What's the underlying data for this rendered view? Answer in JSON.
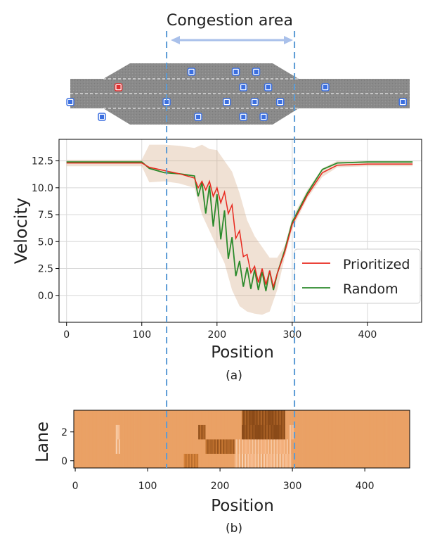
{
  "annotation": {
    "congestion_label": "Congestion area",
    "congestion_range": [
      133,
      303
    ]
  },
  "road": {
    "colors": {
      "road": "#888888",
      "vehicle": "#3b6fe0",
      "highlighted_vehicle": "#e03030"
    },
    "vehicles": [
      {
        "pos": 5,
        "lane": 1
      },
      {
        "pos": 47,
        "lane": 0
      },
      {
        "pos": 69,
        "lane": 2,
        "highlight": true
      },
      {
        "pos": 133,
        "lane": 1
      },
      {
        "pos": 166,
        "lane": 3
      },
      {
        "pos": 175,
        "lane": 0
      },
      {
        "pos": 213,
        "lane": 1
      },
      {
        "pos": 225,
        "lane": 3
      },
      {
        "pos": 235,
        "lane": 2
      },
      {
        "pos": 235,
        "lane": 0
      },
      {
        "pos": 250,
        "lane": 1
      },
      {
        "pos": 252,
        "lane": 3
      },
      {
        "pos": 262,
        "lane": 0
      },
      {
        "pos": 268,
        "lane": 2
      },
      {
        "pos": 284,
        "lane": 1
      },
      {
        "pos": 344,
        "lane": 2
      },
      {
        "pos": 447,
        "lane": 1
      }
    ]
  },
  "chart_data": [
    {
      "type": "line",
      "caption": "(a)",
      "xlabel": "Position",
      "ylabel": "Velocity",
      "xlim": [
        -10,
        472
      ],
      "ylim": [
        -2.5,
        14.5
      ],
      "xticks": [
        0,
        100,
        200,
        300,
        400
      ],
      "yticks": [
        0.0,
        2.5,
        5.0,
        7.5,
        10.0,
        12.5
      ],
      "grid": true,
      "legend_position": "lower-right",
      "series": [
        {
          "name": "Prioritized",
          "color": "#e8281e",
          "x": [
            0,
            50,
            100,
            110,
            130,
            150,
            170,
            175,
            180,
            185,
            190,
            195,
            200,
            205,
            210,
            215,
            220,
            225,
            230,
            235,
            240,
            245,
            250,
            255,
            260,
            265,
            270,
            275,
            280,
            290,
            300,
            320,
            340,
            360,
            400,
            460
          ],
          "y": [
            12.3,
            12.3,
            12.3,
            11.9,
            11.6,
            11.3,
            10.9,
            10.0,
            10.6,
            9.8,
            10.6,
            9.2,
            10.0,
            8.6,
            9.6,
            7.6,
            8.4,
            5.3,
            6.0,
            3.6,
            3.8,
            2.1,
            2.7,
            1.2,
            2.5,
            1.0,
            2.3,
            0.8,
            2.0,
            4.0,
            6.6,
            9.3,
            11.4,
            12.1,
            12.2,
            12.2
          ]
        },
        {
          "name": "Random",
          "color": "#2b8a2b",
          "x": [
            0,
            50,
            100,
            110,
            130,
            150,
            170,
            175,
            180,
            185,
            190,
            195,
            200,
            205,
            210,
            215,
            220,
            225,
            230,
            235,
            240,
            245,
            250,
            255,
            260,
            265,
            270,
            275,
            280,
            290,
            300,
            320,
            340,
            360,
            400,
            460
          ],
          "y": [
            12.4,
            12.4,
            12.4,
            11.8,
            11.4,
            11.3,
            11.1,
            9.2,
            10.5,
            7.6,
            10.2,
            6.4,
            9.4,
            5.2,
            7.9,
            3.4,
            5.4,
            1.8,
            3.2,
            0.8,
            2.6,
            0.6,
            2.4,
            0.5,
            2.2,
            0.4,
            2.3,
            0.5,
            2.0,
            4.2,
            6.8,
            9.5,
            11.7,
            12.3,
            12.4,
            12.4
          ]
        }
      ],
      "band": {
        "color": "#cfa27a",
        "x": [
          0,
          100,
          110,
          130,
          150,
          170,
          180,
          190,
          200,
          210,
          220,
          230,
          240,
          250,
          260,
          270,
          280,
          290,
          300,
          320,
          340,
          360,
          400,
          460
        ],
        "upper": [
          12.6,
          12.6,
          14.0,
          14.0,
          13.9,
          13.7,
          14.0,
          13.6,
          13.5,
          12.5,
          11.5,
          9.5,
          7.0,
          5.5,
          4.5,
          3.5,
          3.5,
          4.6,
          7.2,
          9.8,
          11.8,
          12.5,
          12.5,
          12.5
        ],
        "lower": [
          12.0,
          12.0,
          10.5,
          10.6,
          10.4,
          10.0,
          7.5,
          6.0,
          4.5,
          3.0,
          0.5,
          -1.0,
          -1.5,
          -1.7,
          -1.8,
          -1.5,
          0.5,
          3.5,
          6.2,
          9.0,
          11.0,
          11.9,
          12.0,
          12.0
        ]
      }
    },
    {
      "type": "heatmap",
      "caption": "(b)",
      "xlabel": "Position",
      "ylabel": "Lane",
      "xlim": [
        -2,
        462
      ],
      "xticks": [
        0,
        100,
        200,
        300,
        400
      ],
      "yticks": [
        0,
        2
      ],
      "lanes": 4,
      "colormap": [
        "#fbe7d4",
        "#f4b07c",
        "#d8843a",
        "#8a4a18"
      ],
      "lane_profiles": [
        {
          "lane": 0,
          "base": 0.45,
          "features": [
            [
              150,
              170,
              0.35
            ],
            [
              220,
              300,
              0.15
            ]
          ]
        },
        {
          "lane": 1,
          "base": 0.45,
          "features": [
            [
              55,
              62,
              0.15
            ],
            [
              180,
              220,
              0.5
            ],
            [
              220,
              300,
              0.12
            ]
          ]
        },
        {
          "lane": 2,
          "base": 0.45,
          "features": [
            [
              55,
              62,
              0.2
            ],
            [
              170,
              180,
              0.55
            ],
            [
              230,
              290,
              0.75
            ],
            [
              295,
              302,
              0.15
            ]
          ]
        },
        {
          "lane": 3,
          "base": 0.45,
          "features": [
            [
              230,
              290,
              0.7
            ]
          ]
        }
      ]
    }
  ]
}
